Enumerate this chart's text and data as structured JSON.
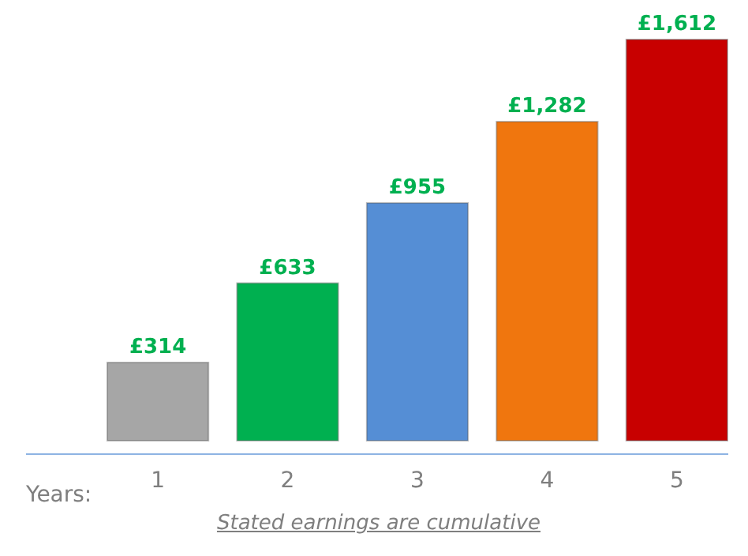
{
  "chart_data": {
    "type": "bar",
    "xlabel": "Years:",
    "categories": [
      "1",
      "2",
      "3",
      "4",
      "5"
    ],
    "values": [
      314,
      633,
      955,
      1282,
      1612
    ],
    "colors": [
      "#a6a6a6",
      "#00b050",
      "#558ed5",
      "#f0760e",
      "#c80000"
    ],
    "value_labels": [
      "£314",
      "£633",
      "£955",
      "£1,282",
      "£1,612"
    ],
    "annotations": [
      "Stated earnings are cumulative"
    ]
  }
}
